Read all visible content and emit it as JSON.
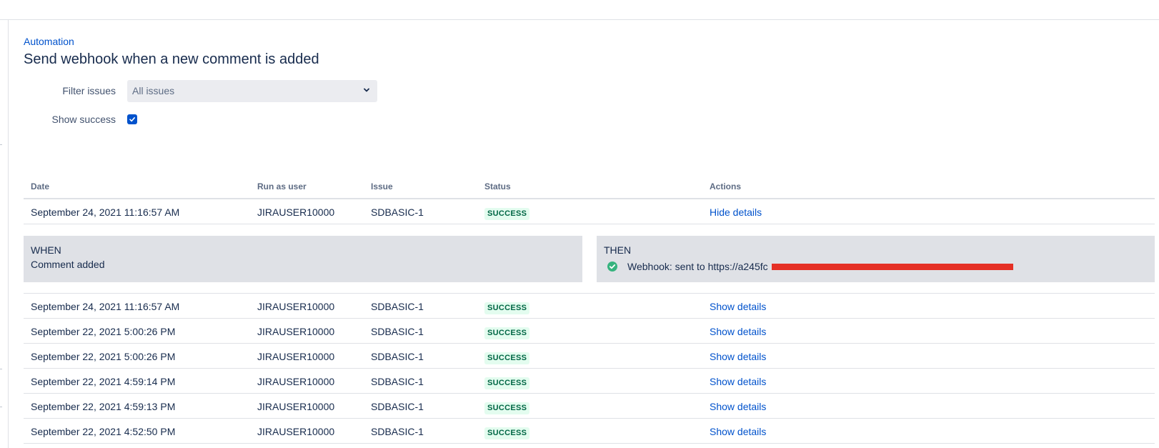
{
  "breadcrumb": "Automation",
  "title": "Send webhook when a new comment is added",
  "filters": {
    "filter_label": "Filter issues",
    "filter_value": "All issues",
    "success_label": "Show success",
    "success_checked": true
  },
  "table": {
    "headers": {
      "date": "Date",
      "user": "Run as user",
      "issue": "Issue",
      "status": "Status",
      "actions": "Actions"
    },
    "expanded_row": {
      "date": "September 24, 2021 11:16:57 AM",
      "user": "JIRAUSER10000",
      "issue": "SDBASIC-1",
      "status": "SUCCESS",
      "action": "Hide details"
    },
    "details": {
      "when_label": "WHEN",
      "when_text": "Comment added",
      "then_label": "THEN",
      "then_text": "Webhook: sent to https://a245fc"
    },
    "rows": [
      {
        "date": "September 24, 2021 11:16:57 AM",
        "user": "JIRAUSER10000",
        "issue": "SDBASIC-1",
        "status": "SUCCESS",
        "action": "Show details"
      },
      {
        "date": "September 22, 2021 5:00:26 PM",
        "user": "JIRAUSER10000",
        "issue": "SDBASIC-1",
        "status": "SUCCESS",
        "action": "Show details"
      },
      {
        "date": "September 22, 2021 5:00:26 PM",
        "user": "JIRAUSER10000",
        "issue": "SDBASIC-1",
        "status": "SUCCESS",
        "action": "Show details"
      },
      {
        "date": "September 22, 2021 4:59:14 PM",
        "user": "JIRAUSER10000",
        "issue": "SDBASIC-1",
        "status": "SUCCESS",
        "action": "Show details"
      },
      {
        "date": "September 22, 2021 4:59:13 PM",
        "user": "JIRAUSER10000",
        "issue": "SDBASIC-1",
        "status": "SUCCESS",
        "action": "Show details"
      },
      {
        "date": "September 22, 2021 4:52:50 PM",
        "user": "JIRAUSER10000",
        "issue": "SDBASIC-1",
        "status": "SUCCESS",
        "action": "Show details"
      }
    ]
  },
  "colors": {
    "link": "#0052cc",
    "success_text": "#006644",
    "success_bg": "#e3fcef",
    "panel_bg": "#dfe1e6",
    "redaction": "#e53025"
  }
}
